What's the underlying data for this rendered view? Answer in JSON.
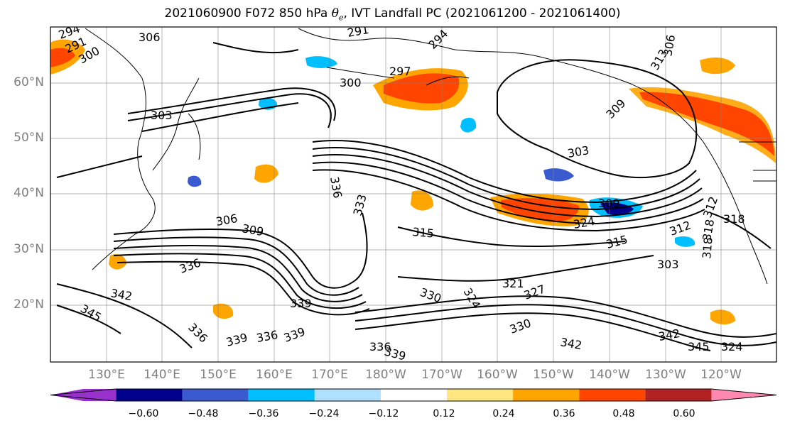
{
  "title": {
    "prefix": "2021060900 F072 850 hPa ",
    "theta": "θ",
    "theta_sub": "e",
    "suffix": ", IVT Landfall PC (2021061200 - 2021061400)"
  },
  "lat_labels": [
    "60°N",
    "50°N",
    "40°N",
    "30°N",
    "20°N"
  ],
  "lon_labels": [
    "130°E",
    "140°E",
    "150°E",
    "160°E",
    "170°E",
    "180°W",
    "170°W",
    "160°W",
    "150°W",
    "140°W",
    "130°W",
    "120°W"
  ],
  "colorbar": {
    "ticks": [
      "−0.60",
      "−0.48",
      "−0.36",
      "−0.24",
      "−0.12",
      "0.12",
      "0.24",
      "0.36",
      "0.48",
      "0.60"
    ],
    "colors": [
      "#9932cc",
      "#00008b",
      "#3a5bd0",
      "#00bfff",
      "#b0e0ff",
      "#ffffff",
      "#ffe680",
      "#ffa500",
      "#ff4500",
      "#b22222",
      "#ff88b0"
    ]
  },
  "contour_labels": [
    "294",
    "291",
    "300",
    "306",
    "291",
    "294",
    "297",
    "300",
    "303",
    "309",
    "313",
    "306",
    "303",
    "309",
    "312",
    "318",
    "324",
    "315",
    "306",
    "309",
    "312",
    "315",
    "303",
    "318",
    "336",
    "342",
    "345",
    "333",
    "339",
    "336",
    "330",
    "324",
    "327",
    "321",
    "336",
    "339",
    "339",
    "336",
    "330",
    "342",
    "336",
    "339",
    "342",
    "345",
    "324",
    "318"
  ],
  "colors": {
    "ocean": "#ffffff",
    "contour": "#000000",
    "grid": "#808080",
    "axis_label": "#7f7f7f"
  }
}
